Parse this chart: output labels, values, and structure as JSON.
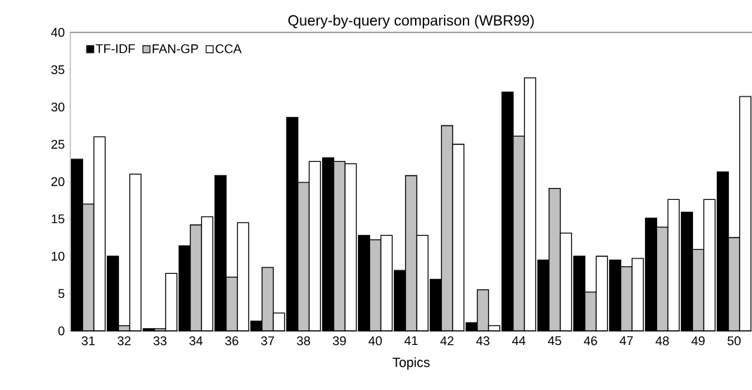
{
  "chart_data": {
    "type": "bar",
    "title": "Query-by-query comparison (WBR99)",
    "xlabel": "Topics",
    "categories": [
      "31",
      "32",
      "33",
      "34",
      "36",
      "37",
      "38",
      "39",
      "40",
      "41",
      "42",
      "43",
      "44",
      "45",
      "46",
      "47",
      "48",
      "49",
      "50"
    ],
    "series": [
      {
        "name": "TF-IDF",
        "color": "#000000",
        "values": [
          23,
          10,
          0.3,
          11.4,
          20.8,
          1.3,
          28.6,
          23.2,
          12.8,
          8.1,
          6.9,
          1.1,
          32,
          9.5,
          10,
          9.5,
          15.1,
          15.9,
          21.3
        ]
      },
      {
        "name": "FAN-GP",
        "color": "#c0c0c0",
        "values": [
          17,
          0.7,
          0.3,
          14.2,
          7.2,
          8.5,
          19.9,
          22.7,
          12.2,
          20.8,
          27.5,
          5.5,
          26.1,
          19.1,
          5.2,
          8.6,
          13.9,
          10.9,
          12.5
        ]
      },
      {
        "name": "CCA",
        "color": "#ffffff",
        "values": [
          26,
          21,
          7.7,
          15.3,
          14.5,
          2.4,
          22.7,
          22.4,
          12.8,
          12.8,
          25,
          0.7,
          33.9,
          13.1,
          10,
          9.7,
          17.6,
          17.6,
          31.4
        ]
      }
    ],
    "ylim": [
      0,
      40
    ],
    "yticks": [
      0,
      5,
      10,
      15,
      20,
      25,
      30,
      35,
      40
    ],
    "grid": false,
    "legend": "top left"
  }
}
